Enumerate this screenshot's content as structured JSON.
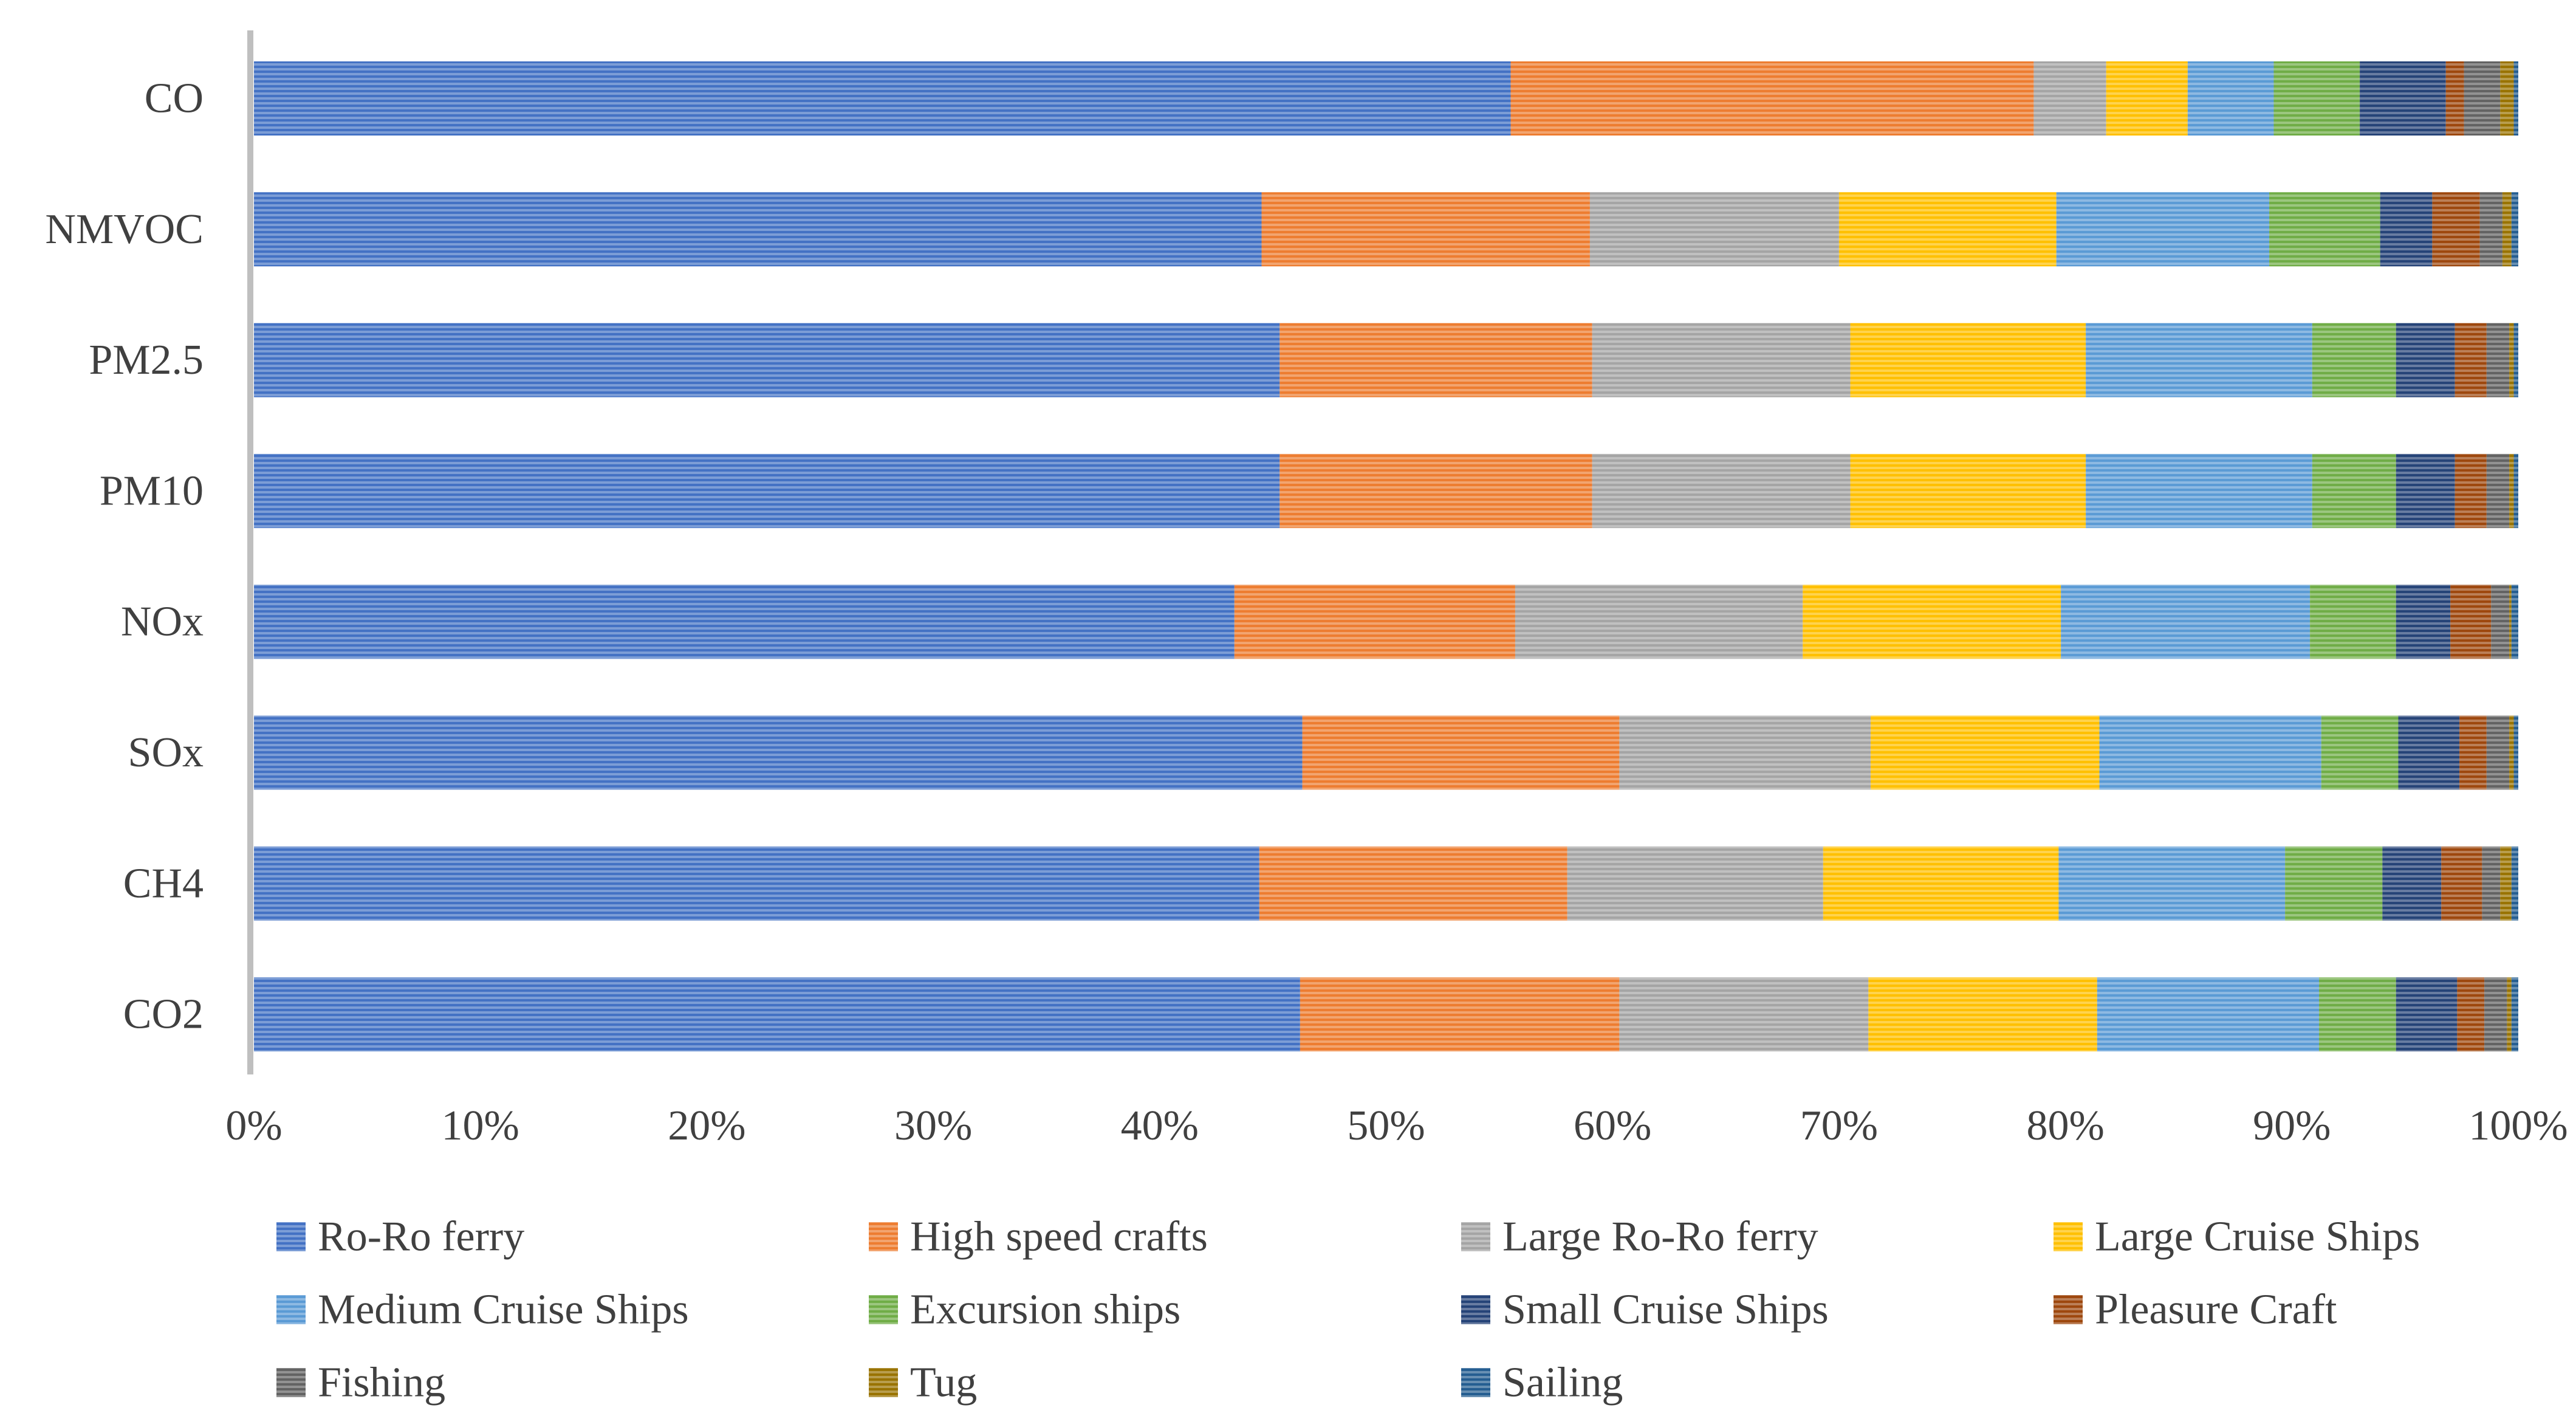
{
  "chart_data": {
    "type": "bar",
    "orientation": "horizontal",
    "stacked": "percent",
    "title": "",
    "xlabel": "",
    "ylabel": "",
    "xlim": [
      0,
      100
    ],
    "x_ticks": [
      "0%",
      "10%",
      "20%",
      "30%",
      "40%",
      "50%",
      "60%",
      "70%",
      "80%",
      "90%",
      "100%"
    ],
    "grid": false,
    "legend_position": "bottom",
    "categories": [
      "CO",
      "NMVOC",
      "PM2.5",
      "PM10",
      "NOx",
      "SOx",
      "CH4",
      "CO2"
    ],
    "series": [
      {
        "name": "Ro-Ro ferry",
        "color": "#4472C4",
        "values": [
          55.5,
          44.5,
          45.3,
          45.3,
          43.3,
          46.3,
          44.4,
          46.2
        ]
      },
      {
        "name": "High speed crafts",
        "color": "#ED7D31",
        "values": [
          23.1,
          14.5,
          13.8,
          13.8,
          12.4,
          14.0,
          13.6,
          14.1
        ]
      },
      {
        "name": "Large Ro-Ro ferry",
        "color": "#A5A5A5",
        "values": [
          3.2,
          11.0,
          11.4,
          11.4,
          12.7,
          11.1,
          11.3,
          11.0
        ]
      },
      {
        "name": "Large Cruise Ships",
        "color": "#FFC000",
        "values": [
          3.6,
          9.6,
          10.4,
          10.4,
          11.4,
          10.1,
          10.4,
          10.1
        ]
      },
      {
        "name": "Medium Cruise Ships",
        "color": "#5B9BD5",
        "values": [
          3.8,
          9.4,
          10.0,
          10.0,
          11.0,
          9.8,
          10.0,
          9.8
        ]
      },
      {
        "name": "Excursion ships",
        "color": "#70AD47",
        "values": [
          3.8,
          4.9,
          3.7,
          3.7,
          3.8,
          3.4,
          4.3,
          3.4
        ]
      },
      {
        "name": "Small Cruise Ships",
        "color": "#264478",
        "values": [
          3.8,
          2.3,
          2.6,
          2.6,
          2.4,
          2.7,
          2.6,
          2.7
        ]
      },
      {
        "name": "Pleasure Craft",
        "color": "#9E480E",
        "values": [
          0.8,
          2.1,
          1.4,
          1.4,
          1.8,
          1.2,
          1.8,
          1.2
        ]
      },
      {
        "name": "Fishing",
        "color": "#636363",
        "values": [
          1.6,
          1.0,
          1.0,
          1.0,
          0.8,
          1.0,
          0.8,
          1.0
        ]
      },
      {
        "name": "Tug",
        "color": "#997300",
        "values": [
          0.6,
          0.4,
          0.2,
          0.2,
          0.1,
          0.2,
          0.5,
          0.2
        ]
      },
      {
        "name": "Sailing",
        "color": "#255E91",
        "values": [
          0.2,
          0.3,
          0.2,
          0.2,
          0.3,
          0.2,
          0.3,
          0.3
        ]
      }
    ]
  }
}
